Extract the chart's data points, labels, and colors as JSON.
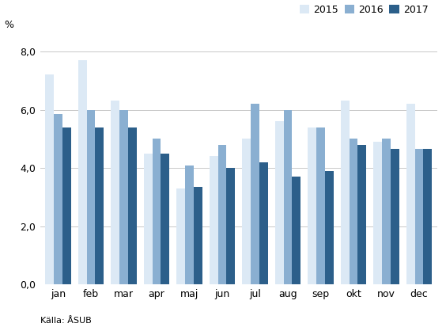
{
  "months": [
    "jan",
    "feb",
    "mar",
    "apr",
    "maj",
    "jun",
    "jul",
    "aug",
    "sep",
    "okt",
    "nov",
    "dec"
  ],
  "series": {
    "2015": [
      7.2,
      7.7,
      6.3,
      4.5,
      3.3,
      4.4,
      5.0,
      5.6,
      5.4,
      6.3,
      4.9,
      6.2
    ],
    "2016": [
      5.85,
      6.0,
      6.0,
      5.0,
      4.1,
      4.8,
      6.2,
      6.0,
      5.4,
      5.0,
      5.0,
      4.65
    ],
    "2017": [
      5.4,
      5.4,
      5.4,
      4.5,
      3.35,
      4.0,
      4.2,
      3.7,
      3.9,
      4.8,
      4.65,
      4.65
    ]
  },
  "colors": {
    "2015": "#dce9f5",
    "2016": "#8aafd1",
    "2017": "#2c5f8a"
  },
  "legend_labels": [
    "2015",
    "2016",
    "2017"
  ],
  "ylabel": "%",
  "ylim": [
    0,
    8.4
  ],
  "yticks": [
    0.0,
    2.0,
    4.0,
    6.0,
    8.0
  ],
  "ytick_labels": [
    "0,0",
    "2,0",
    "4,0",
    "6,0",
    "8,0"
  ],
  "source_text": "Källa: ÅSUB",
  "bar_width": 0.26,
  "background_color": "#ffffff",
  "grid_color": "#c8c8c8"
}
